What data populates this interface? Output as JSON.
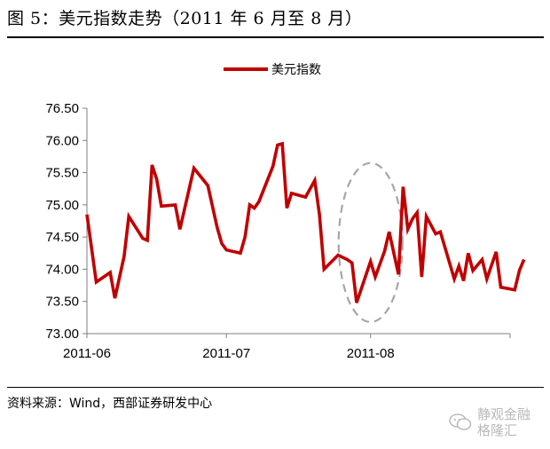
{
  "title": "图 5：美元指数走势（2011 年 6 月至 8 月）",
  "source": "资料来源：Wind，西部证券研发中心",
  "watermark": {
    "line1": "静观金融",
    "line2": "格隆汇"
  },
  "colors": {
    "series": "#c00000",
    "annotation": "#a6a6a6",
    "axis": "#7f7f7f"
  },
  "chart_data": {
    "type": "line",
    "title": "",
    "xlabel": "",
    "ylabel": "",
    "ylim": [
      73.0,
      76.5
    ],
    "yticks": [
      "73.00",
      "73.50",
      "74.00",
      "74.50",
      "75.00",
      "75.50",
      "76.00",
      "76.50"
    ],
    "xticks": [
      "2011-06",
      "2011-07",
      "2011-08"
    ],
    "x_range": [
      "2011-06-01",
      "2011-08-31"
    ],
    "legend": {
      "position": "top-center",
      "entries": [
        "美元指数"
      ]
    },
    "grid": false,
    "series": [
      {
        "name": "美元指数",
        "points": [
          [
            "2011-06-01",
            74.85
          ],
          [
            "2011-06-03",
            73.8
          ],
          [
            "2011-06-06",
            73.95
          ],
          [
            "2011-06-07",
            73.55
          ],
          [
            "2011-06-09",
            74.2
          ],
          [
            "2011-06-10",
            74.82
          ],
          [
            "2011-06-13",
            74.48
          ],
          [
            "2011-06-14",
            74.45
          ],
          [
            "2011-06-15",
            75.62
          ],
          [
            "2011-06-16",
            75.4
          ],
          [
            "2011-06-17",
            74.98
          ],
          [
            "2011-06-20",
            75.0
          ],
          [
            "2011-06-21",
            74.62
          ],
          [
            "2011-06-24",
            75.57
          ],
          [
            "2011-06-27",
            75.3
          ],
          [
            "2011-06-29",
            74.65
          ],
          [
            "2011-06-30",
            74.4
          ],
          [
            "2011-07-01",
            74.3
          ],
          [
            "2011-07-04",
            74.25
          ],
          [
            "2011-07-05",
            74.5
          ],
          [
            "2011-07-06",
            75.0
          ],
          [
            "2011-07-07",
            74.95
          ],
          [
            "2011-07-08",
            75.05
          ],
          [
            "2011-07-11",
            75.6
          ],
          [
            "2011-07-12",
            75.93
          ],
          [
            "2011-07-13",
            75.95
          ],
          [
            "2011-07-14",
            74.95
          ],
          [
            "2011-07-15",
            75.18
          ],
          [
            "2011-07-18",
            75.12
          ],
          [
            "2011-07-19",
            75.25
          ],
          [
            "2011-07-20",
            75.38
          ],
          [
            "2011-07-21",
            74.85
          ],
          [
            "2011-07-22",
            74.0
          ],
          [
            "2011-07-25",
            74.22
          ],
          [
            "2011-07-27",
            74.15
          ],
          [
            "2011-07-28",
            74.1
          ],
          [
            "2011-07-29",
            73.48
          ],
          [
            "2011-08-01",
            74.12
          ],
          [
            "2011-08-02",
            73.88
          ],
          [
            "2011-08-04",
            74.28
          ],
          [
            "2011-08-05",
            74.58
          ],
          [
            "2011-08-07",
            73.92
          ],
          [
            "2011-08-08",
            75.28
          ],
          [
            "2011-08-09",
            74.62
          ],
          [
            "2011-08-10",
            74.78
          ],
          [
            "2011-08-11",
            74.88
          ],
          [
            "2011-08-12",
            73.88
          ],
          [
            "2011-08-13",
            74.82
          ],
          [
            "2011-08-15",
            74.55
          ],
          [
            "2011-08-16",
            74.58
          ],
          [
            "2011-08-19",
            73.85
          ],
          [
            "2011-08-20",
            74.05
          ],
          [
            "2011-08-21",
            73.82
          ],
          [
            "2011-08-22",
            74.25
          ],
          [
            "2011-08-23",
            73.98
          ],
          [
            "2011-08-25",
            74.15
          ],
          [
            "2011-08-26",
            73.85
          ],
          [
            "2011-08-28",
            74.27
          ],
          [
            "2011-08-29",
            73.72
          ],
          [
            "2011-09-01",
            73.68
          ],
          [
            "2011-09-02",
            73.98
          ],
          [
            "2011-09-03",
            74.15
          ]
        ]
      }
    ],
    "annotations": [
      {
        "type": "dashed-ellipse",
        "x_center": "2011-08-01",
        "y_range": [
          73.18,
          75.65
        ]
      }
    ]
  }
}
